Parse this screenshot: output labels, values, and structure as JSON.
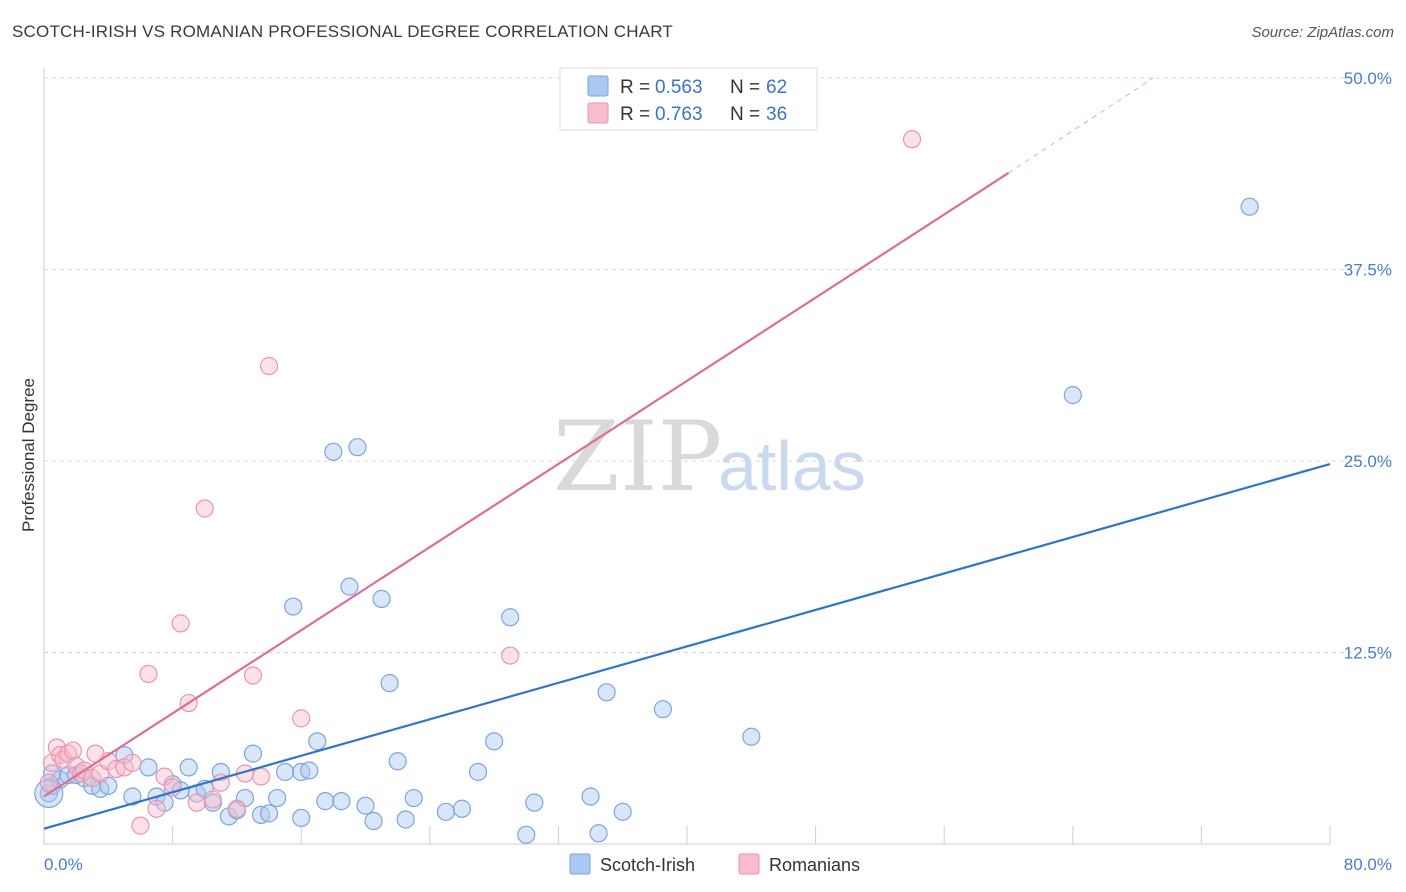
{
  "title": "SCOTCH-IRISH VS ROMANIAN PROFESSIONAL DEGREE CORRELATION CHART",
  "source": "Source: ZipAtlas.com",
  "watermark": {
    "zip": "ZIP",
    "atlas": "atlas"
  },
  "legend": {
    "rows": [
      {
        "r_label": "R =",
        "r_value": "0.563",
        "n_label": "N =",
        "n_value": "62"
      },
      {
        "r_label": "R =",
        "r_value": "0.763",
        "n_label": "N =",
        "n_value": "36"
      }
    ]
  },
  "bottom_legend": [
    "Scotch-Irish",
    "Romanians"
  ],
  "colors": {
    "blue_fill": "#aac8f0",
    "blue_stroke": "#7aa6de",
    "blue_line": "#2f74c8",
    "pink_fill": "#f7bccd",
    "pink_stroke": "#e995b0",
    "pink_line": "#e06b93",
    "grid": "#d9d9d9",
    "tick": "#4a7cc9"
  },
  "chart_data": {
    "type": "scatter",
    "xlabel": "",
    "ylabel": "Professional Degree",
    "xlim": [
      0,
      80
    ],
    "ylim": [
      0,
      50
    ],
    "x_tick_labels": [
      "0.0%",
      "80.0%"
    ],
    "y_ticks": [
      12.5,
      25.0,
      37.5,
      50.0
    ],
    "y_tick_labels": [
      "12.5%",
      "25.0%",
      "37.5%",
      "50.0%"
    ],
    "series": [
      {
        "name": "Scotch-Irish",
        "points": [
          [
            0.3,
            3.3
          ],
          [
            0.5,
            3.8
          ],
          [
            1.0,
            4.2
          ],
          [
            1.5,
            4.5
          ],
          [
            2.0,
            4.5
          ],
          [
            2.5,
            4.3
          ],
          [
            3.0,
            3.8
          ],
          [
            3.5,
            3.6
          ],
          [
            4.0,
            3.8
          ],
          [
            5.0,
            5.8
          ],
          [
            5.5,
            3.1
          ],
          [
            6.5,
            5.0
          ],
          [
            7.0,
            3.1
          ],
          [
            7.5,
            2.7
          ],
          [
            8.0,
            3.9
          ],
          [
            8.5,
            3.5
          ],
          [
            9.0,
            5.0
          ],
          [
            9.5,
            3.3
          ],
          [
            10.0,
            3.6
          ],
          [
            10.5,
            2.7
          ],
          [
            11.0,
            4.7
          ],
          [
            11.5,
            1.8
          ],
          [
            12.0,
            2.2
          ],
          [
            12.5,
            3.0
          ],
          [
            13.0,
            5.9
          ],
          [
            13.5,
            1.9
          ],
          [
            14.0,
            2.0
          ],
          [
            14.5,
            3.0
          ],
          [
            15.0,
            4.7
          ],
          [
            15.5,
            15.5
          ],
          [
            16.0,
            1.7
          ],
          [
            16.0,
            4.7
          ],
          [
            16.5,
            4.8
          ],
          [
            17.0,
            6.7
          ],
          [
            17.5,
            2.8
          ],
          [
            18.0,
            25.6
          ],
          [
            18.5,
            2.8
          ],
          [
            19.0,
            16.8
          ],
          [
            19.5,
            25.9
          ],
          [
            20.0,
            2.5
          ],
          [
            20.5,
            1.5
          ],
          [
            21.0,
            16.0
          ],
          [
            21.5,
            10.5
          ],
          [
            22.0,
            5.4
          ],
          [
            22.5,
            1.6
          ],
          [
            23.0,
            3.0
          ],
          [
            25.0,
            2.1
          ],
          [
            26.0,
            2.3
          ],
          [
            27.0,
            4.7
          ],
          [
            28.0,
            6.7
          ],
          [
            29.0,
            14.8
          ],
          [
            30.0,
            0.6
          ],
          [
            30.5,
            2.7
          ],
          [
            34.0,
            3.1
          ],
          [
            34.5,
            0.7
          ],
          [
            35.0,
            9.9
          ],
          [
            36.0,
            2.1
          ],
          [
            38.5,
            8.8
          ],
          [
            44.0,
            7.0
          ],
          [
            64.0,
            29.3
          ],
          [
            75.0,
            41.6
          ],
          [
            0.5,
            4.6
          ]
        ],
        "trendline": {
          "x": [
            0,
            80
          ],
          "y": [
            1.0,
            24.8
          ]
        }
      },
      {
        "name": "Romanians",
        "points": [
          [
            0.3,
            4.0
          ],
          [
            0.5,
            5.3
          ],
          [
            0.8,
            6.3
          ],
          [
            1.0,
            5.8
          ],
          [
            1.2,
            5.5
          ],
          [
            1.5,
            5.9
          ],
          [
            1.8,
            6.1
          ],
          [
            2.0,
            5.1
          ],
          [
            2.3,
            4.6
          ],
          [
            2.5,
            4.8
          ],
          [
            3.0,
            4.3
          ],
          [
            3.2,
            5.9
          ],
          [
            3.5,
            4.6
          ],
          [
            4.0,
            5.4
          ],
          [
            4.5,
            4.9
          ],
          [
            5.0,
            5.0
          ],
          [
            5.5,
            5.3
          ],
          [
            6.0,
            1.2
          ],
          [
            6.5,
            11.1
          ],
          [
            7.0,
            2.3
          ],
          [
            7.5,
            4.4
          ],
          [
            8.0,
            3.7
          ],
          [
            8.5,
            14.4
          ],
          [
            9.0,
            9.2
          ],
          [
            9.5,
            2.7
          ],
          [
            10.0,
            21.9
          ],
          [
            10.5,
            2.9
          ],
          [
            11.0,
            4.0
          ],
          [
            12.0,
            2.3
          ],
          [
            12.5,
            4.6
          ],
          [
            13.0,
            11.0
          ],
          [
            13.5,
            4.4
          ],
          [
            14.0,
            31.2
          ],
          [
            16.0,
            8.2
          ],
          [
            29.0,
            12.3
          ],
          [
            54.0,
            46.0
          ]
        ],
        "trendline": {
          "x": [
            0,
            60
          ],
          "y": [
            3.1,
            43.8
          ]
        },
        "trendline_extension": {
          "x": [
            60,
            69
          ],
          "y": [
            43.8,
            50.0
          ]
        }
      }
    ]
  }
}
